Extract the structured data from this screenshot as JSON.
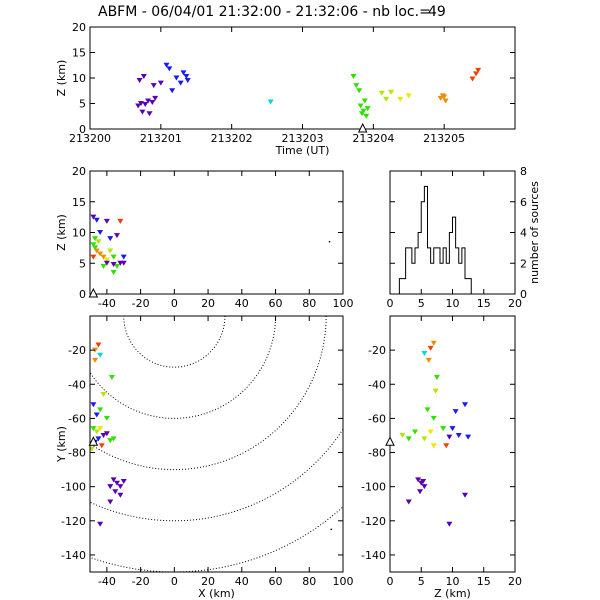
{
  "header": {
    "title": "ABFM - 06/04/01 21:32:00 - 21:32:06 - nb loc.=",
    "count": "49"
  },
  "chart_data": [
    {
      "id": "time-height",
      "type": "scatter",
      "xlabel": "Time (UT)",
      "ylabel": "Z (km)",
      "xlim": [
        213200,
        213206
      ],
      "ylim": [
        0,
        20
      ],
      "xticks": [
        "213200",
        "213201",
        "213202",
        "213203",
        "213204",
        "213205"
      ],
      "yticks": [
        "0",
        "5",
        "10",
        "15",
        "20"
      ],
      "station_marker_x": 213203.85,
      "points": [
        {
          "x": 213200.68,
          "y": 4.5,
          "c": "#5a00b4"
        },
        {
          "x": 213200.72,
          "y": 5.0,
          "c": "#5a00b4"
        },
        {
          "x": 213200.78,
          "y": 4.8,
          "c": "#5a00b4"
        },
        {
          "x": 213200.82,
          "y": 5.5,
          "c": "#5a00b4"
        },
        {
          "x": 213200.88,
          "y": 5.2,
          "c": "#5a00b4"
        },
        {
          "x": 213200.92,
          "y": 6.0,
          "c": "#5a00b4"
        },
        {
          "x": 213200.74,
          "y": 3.3,
          "c": "#5a00b4"
        },
        {
          "x": 213200.84,
          "y": 3.0,
          "c": "#5a00b4"
        },
        {
          "x": 213200.7,
          "y": 9.5,
          "c": "#5a00b4"
        },
        {
          "x": 213200.76,
          "y": 10.3,
          "c": "#5a00b4"
        },
        {
          "x": 213200.9,
          "y": 8.5,
          "c": "#5a00b4"
        },
        {
          "x": 213201.0,
          "y": 9.0,
          "c": "#5a00b4"
        },
        {
          "x": 213201.08,
          "y": 12.5,
          "c": "#1a1af0"
        },
        {
          "x": 213201.12,
          "y": 11.8,
          "c": "#1a1af0"
        },
        {
          "x": 213201.22,
          "y": 10.0,
          "c": "#1a1af0"
        },
        {
          "x": 213201.28,
          "y": 9.0,
          "c": "#1a1af0"
        },
        {
          "x": 213201.32,
          "y": 11.0,
          "c": "#1a1af0"
        },
        {
          "x": 213201.38,
          "y": 9.5,
          "c": "#1a1af0"
        },
        {
          "x": 213201.16,
          "y": 7.5,
          "c": "#1a1af0"
        },
        {
          "x": 213201.36,
          "y": 10.3,
          "c": "#1a1af0"
        },
        {
          "x": 213202.55,
          "y": 5.3,
          "c": "#00d8d8"
        },
        {
          "x": 213203.72,
          "y": 10.3,
          "c": "#30e000"
        },
        {
          "x": 213203.76,
          "y": 8.5,
          "c": "#30e000"
        },
        {
          "x": 213203.8,
          "y": 7.5,
          "c": "#30e000"
        },
        {
          "x": 213203.82,
          "y": 4.5,
          "c": "#30e000"
        },
        {
          "x": 213203.86,
          "y": 3.5,
          "c": "#30e000"
        },
        {
          "x": 213203.88,
          "y": 5.5,
          "c": "#30e000"
        },
        {
          "x": 213203.9,
          "y": 2.5,
          "c": "#30e000"
        },
        {
          "x": 213203.84,
          "y": 3.0,
          "c": "#30e000"
        },
        {
          "x": 213203.92,
          "y": 4.0,
          "c": "#30e000"
        },
        {
          "x": 213204.12,
          "y": 7.0,
          "c": "#b0e800"
        },
        {
          "x": 213204.18,
          "y": 5.8,
          "c": "#b0e800"
        },
        {
          "x": 213204.25,
          "y": 7.2,
          "c": "#b0e800"
        },
        {
          "x": 213204.38,
          "y": 5.8,
          "c": "#e8e800"
        },
        {
          "x": 213204.5,
          "y": 6.5,
          "c": "#e8e800"
        },
        {
          "x": 213204.95,
          "y": 6.0,
          "c": "#f08c00"
        },
        {
          "x": 213204.98,
          "y": 6.5,
          "c": "#f08c00"
        },
        {
          "x": 213205.02,
          "y": 5.5,
          "c": "#f08c00"
        },
        {
          "x": 213205.0,
          "y": 6.3,
          "c": "#f08c00"
        },
        {
          "x": 213205.4,
          "y": 9.8,
          "c": "#f04000"
        },
        {
          "x": 213205.45,
          "y": 10.8,
          "c": "#f04000"
        },
        {
          "x": 213205.48,
          "y": 11.5,
          "c": "#f04000"
        }
      ]
    },
    {
      "id": "x-z",
      "type": "scatter",
      "xlabel": "",
      "ylabel": "Z (km)",
      "xlim": [
        -50,
        100
      ],
      "ylim": [
        0,
        20
      ],
      "xticks": [
        "-40",
        "-20",
        "0",
        "20",
        "40",
        "60",
        "80",
        "100"
      ],
      "yticks": [
        "0",
        "5",
        "10",
        "15",
        "20"
      ],
      "station_marker": {
        "x": -48,
        "z": 0
      },
      "points": [
        {
          "x": -48,
          "y": 12.5,
          "c": "#5a00b4"
        },
        {
          "x": -46,
          "y": 12.0,
          "c": "#1a1af0"
        },
        {
          "x": -44,
          "y": 10.0,
          "c": "#1a1af0"
        },
        {
          "x": -47,
          "y": 9.0,
          "c": "#30e000"
        },
        {
          "x": -45,
          "y": 8.5,
          "c": "#b0e800"
        },
        {
          "x": -48,
          "y": 8.0,
          "c": "#30e000"
        },
        {
          "x": -47,
          "y": 7.5,
          "c": "#30e000"
        },
        {
          "x": -46,
          "y": 7.0,
          "c": "#f08c00"
        },
        {
          "x": -44,
          "y": 6.5,
          "c": "#f08c00"
        },
        {
          "x": -42,
          "y": 6.0,
          "c": "#f08c00"
        },
        {
          "x": -48,
          "y": 6.0,
          "c": "#f04000"
        },
        {
          "x": -40,
          "y": 5.5,
          "c": "#e8e800"
        },
        {
          "x": -38,
          "y": 7.0,
          "c": "#b0e800"
        },
        {
          "x": -36,
          "y": 6.0,
          "c": "#30e000"
        },
        {
          "x": -34,
          "y": 4.5,
          "c": "#30e000"
        },
        {
          "x": -32,
          "y": 5.0,
          "c": "#5a00b4"
        },
        {
          "x": -30,
          "y": 5.0,
          "c": "#5a00b4"
        },
        {
          "x": -36,
          "y": 3.5,
          "c": "#30e000"
        },
        {
          "x": -40,
          "y": 11.8,
          "c": "#5a00b4"
        },
        {
          "x": -32,
          "y": 11.8,
          "c": "#f04000"
        },
        {
          "x": -34,
          "y": 9.5,
          "c": "#5a00b4"
        },
        {
          "x": -38,
          "y": 9.0,
          "c": "#1a1af0"
        },
        {
          "x": -40,
          "y": 5.0,
          "c": "#5a00b4"
        },
        {
          "x": -36,
          "y": 4.8,
          "c": "#5a00b4"
        },
        {
          "x": -42,
          "y": 4.5,
          "c": "#30e000"
        },
        {
          "x": -30,
          "y": 6.0,
          "c": "#1a1af0"
        },
        {
          "x": 92,
          "y": 8.5,
          "c": "#000000"
        }
      ]
    },
    {
      "id": "z-histogram",
      "type": "bar",
      "xlabel": "",
      "ylabel": "number of sources",
      "xlim": [
        0,
        20
      ],
      "ylim": [
        0,
        8
      ],
      "xticks": [
        "0",
        "5",
        "10",
        "15",
        "20"
      ],
      "yticks": [
        "0",
        "2",
        "4",
        "6",
        "8"
      ],
      "bin_width": 0.5,
      "bins": [
        [
          1.5,
          1
        ],
        [
          2.0,
          1
        ],
        [
          2.5,
          3
        ],
        [
          3.0,
          3
        ],
        [
          3.5,
          2
        ],
        [
          4.0,
          3
        ],
        [
          4.5,
          4
        ],
        [
          5.0,
          6
        ],
        [
          5.5,
          7
        ],
        [
          6.0,
          3
        ],
        [
          6.5,
          2
        ],
        [
          7.0,
          3
        ],
        [
          7.5,
          3
        ],
        [
          8.0,
          2
        ],
        [
          8.5,
          3
        ],
        [
          9.0,
          2
        ],
        [
          9.5,
          4
        ],
        [
          10.0,
          5
        ],
        [
          10.5,
          3
        ],
        [
          11.0,
          2
        ],
        [
          11.5,
          3
        ],
        [
          12.0,
          1
        ],
        [
          12.5,
          1
        ]
      ]
    },
    {
      "id": "x-y",
      "type": "scatter",
      "xlabel": "X (km)",
      "ylabel": "Y (km)",
      "xlim": [
        -50,
        100
      ],
      "ylim": [
        -150,
        0
      ],
      "xticks": [
        "-40",
        "-20",
        "0",
        "20",
        "40",
        "60",
        "80",
        "100"
      ],
      "yticks": [
        "-140",
        "-120",
        "-100",
        "-80",
        "-60",
        "-40",
        "-20"
      ],
      "station_marker": {
        "x": -48,
        "y": -74
      },
      "range_rings": {
        "center": [
          0,
          0
        ],
        "radii": [
          30,
          60,
          90,
          120,
          150
        ]
      },
      "points": [
        {
          "x": -47,
          "y": -20,
          "c": "#f08c00"
        },
        {
          "x": -45,
          "y": -17,
          "c": "#f04000"
        },
        {
          "x": -44,
          "y": -23,
          "c": "#00d8d8"
        },
        {
          "x": -47,
          "y": -26,
          "c": "#f08c00"
        },
        {
          "x": -37,
          "y": -36,
          "c": "#30e000"
        },
        {
          "x": -42,
          "y": -46,
          "c": "#b0e800"
        },
        {
          "x": -48,
          "y": -52,
          "c": "#1a1af0"
        },
        {
          "x": -46,
          "y": -58,
          "c": "#1a1af0"
        },
        {
          "x": -44,
          "y": -55,
          "c": "#30e000"
        },
        {
          "x": -40,
          "y": -60,
          "c": "#30e000"
        },
        {
          "x": -48,
          "y": -66,
          "c": "#30e000"
        },
        {
          "x": -46,
          "y": -68,
          "c": "#b0e800"
        },
        {
          "x": -44,
          "y": -66,
          "c": "#e8e800"
        },
        {
          "x": -42,
          "y": -70,
          "c": "#5a00b4"
        },
        {
          "x": -45,
          "y": -72,
          "c": "#1a1af0"
        },
        {
          "x": -47,
          "y": -74,
          "c": "#1a1af0"
        },
        {
          "x": -43,
          "y": -76,
          "c": "#f04000"
        },
        {
          "x": -40,
          "y": -69,
          "c": "#5a00b4"
        },
        {
          "x": -38,
          "y": -73,
          "c": "#30e000"
        },
        {
          "x": -36,
          "y": -72,
          "c": "#30e000"
        },
        {
          "x": -49,
          "y": -78,
          "c": "#b0e800"
        },
        {
          "x": -36,
          "y": -96,
          "c": "#5a00b4"
        },
        {
          "x": -34,
          "y": -98,
          "c": "#5a00b4"
        },
        {
          "x": -32,
          "y": -100,
          "c": "#5a00b4"
        },
        {
          "x": -30,
          "y": -97,
          "c": "#5a00b4"
        },
        {
          "x": -35,
          "y": -103,
          "c": "#5a00b4"
        },
        {
          "x": -38,
          "y": -109,
          "c": "#5a00b4"
        },
        {
          "x": -32,
          "y": -105,
          "c": "#5a00b4"
        },
        {
          "x": -38,
          "y": -100,
          "c": "#5a00b4"
        },
        {
          "x": -44,
          "y": -122,
          "c": "#5a00b4"
        },
        {
          "x": 93,
          "y": -125,
          "c": "#000000"
        }
      ]
    },
    {
      "id": "z-y",
      "type": "scatter",
      "xlabel": "Z (km)",
      "ylabel": "",
      "xlim": [
        0,
        20
      ],
      "ylim": [
        -150,
        0
      ],
      "xticks": [
        "0",
        "5",
        "10",
        "15",
        "20"
      ],
      "yticks": [
        "-140",
        "-120",
        "-100",
        "-80",
        "-60",
        "-40",
        "-20"
      ],
      "station_marker": {
        "z": 0,
        "y": -74
      },
      "points": [
        {
          "x": 7.0,
          "y": -16,
          "c": "#f08c00"
        },
        {
          "x": 6.5,
          "y": -19,
          "c": "#f04000"
        },
        {
          "x": 5.5,
          "y": -22,
          "c": "#00d8d8"
        },
        {
          "x": 6.2,
          "y": -26,
          "c": "#f08c00"
        },
        {
          "x": 7.5,
          "y": -36,
          "c": "#30e000"
        },
        {
          "x": 7.3,
          "y": -44,
          "c": "#b0e800"
        },
        {
          "x": 12.0,
          "y": -52,
          "c": "#1a1af0"
        },
        {
          "x": 10.5,
          "y": -56,
          "c": "#1a1af0"
        },
        {
          "x": 6.0,
          "y": -55,
          "c": "#30e000"
        },
        {
          "x": 7.0,
          "y": -60,
          "c": "#30e000"
        },
        {
          "x": 10.0,
          "y": -66,
          "c": "#1a1af0"
        },
        {
          "x": 11.0,
          "y": -70,
          "c": "#1a1af0"
        },
        {
          "x": 12.5,
          "y": -71,
          "c": "#1a1af0"
        },
        {
          "x": 8.5,
          "y": -66,
          "c": "#30e000"
        },
        {
          "x": 6.5,
          "y": -68,
          "c": "#e8e800"
        },
        {
          "x": 5.5,
          "y": -72,
          "c": "#b0e800"
        },
        {
          "x": 4.0,
          "y": -68,
          "c": "#30e000"
        },
        {
          "x": 3.0,
          "y": -72,
          "c": "#30e000"
        },
        {
          "x": 2.0,
          "y": -70,
          "c": "#b0e800"
        },
        {
          "x": 7.0,
          "y": -76,
          "c": "#e8e800"
        },
        {
          "x": 9.0,
          "y": -76,
          "c": "#f04000"
        },
        {
          "x": 9.5,
          "y": -71,
          "c": "#5a00b4"
        },
        {
          "x": 4.5,
          "y": -96,
          "c": "#5a00b4"
        },
        {
          "x": 5.0,
          "y": -98,
          "c": "#5a00b4"
        },
        {
          "x": 5.5,
          "y": -100,
          "c": "#5a00b4"
        },
        {
          "x": 4.8,
          "y": -103,
          "c": "#5a00b4"
        },
        {
          "x": 5.3,
          "y": -97,
          "c": "#5a00b4"
        },
        {
          "x": 3.0,
          "y": -109,
          "c": "#5a00b4"
        },
        {
          "x": 12.0,
          "y": -105,
          "c": "#5a00b4"
        },
        {
          "x": 9.5,
          "y": -122,
          "c": "#5a00b4"
        }
      ]
    }
  ]
}
